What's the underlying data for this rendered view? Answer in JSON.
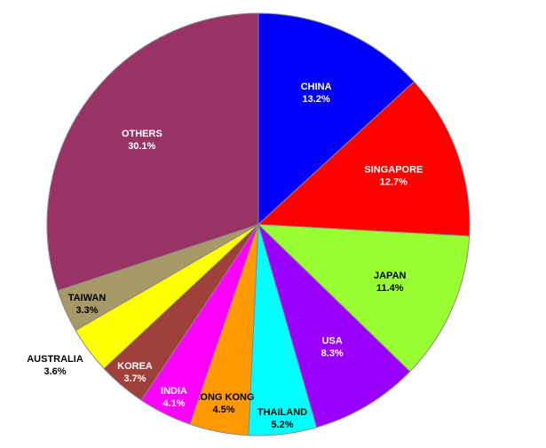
{
  "chart_data": {
    "type": "pie",
    "categories": [
      "CHINA",
      "SINGAPORE",
      "JAPAN",
      "USA",
      "THAILAND",
      "HONG KONG",
      "INDIA",
      "KOREA",
      "AUSTRALIA",
      "TAIWAN",
      "OTHERS"
    ],
    "values": [
      13.2,
      12.7,
      11.4,
      8.3,
      5.2,
      4.5,
      4.1,
      3.7,
      3.6,
      3.3,
      30.1
    ],
    "value_labels": [
      "13.2%",
      "12.7%",
      "11.4%",
      "8.3%",
      "5.2%",
      "4.5%",
      "4.1%",
      "3.7%",
      "3.6%",
      "3.3%",
      "30.1%"
    ],
    "colors": [
      "#0000ff",
      "#ff0000",
      "#99ff33",
      "#9900ff",
      "#00ffff",
      "#ff9900",
      "#ff00ff",
      "#a0403a",
      "#ffff00",
      "#a89968",
      "#993366"
    ]
  }
}
